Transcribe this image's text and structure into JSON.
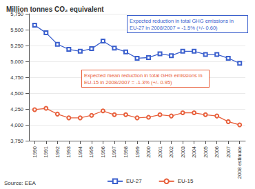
{
  "chart_data": {
    "type": "line",
    "title": "Million tonnes CO₂ equivalent",
    "categories": [
      "1990",
      "1991",
      "1992",
      "1993",
      "1994",
      "1995",
      "1996",
      "1997",
      "1998",
      "1999",
      "2000",
      "2001",
      "2002",
      "2003",
      "2004",
      "2005",
      "2006",
      "2007",
      "2008 estimate"
    ],
    "series": [
      {
        "name": "EU-27",
        "color": "#3a5fcd",
        "marker": "square",
        "values": [
          5570,
          5450,
          5270,
          5190,
          5160,
          5200,
          5320,
          5210,
          5150,
          5050,
          5060,
          5120,
          5090,
          5160,
          5160,
          5110,
          5110,
          5050,
          4970
        ]
      },
      {
        "name": "EU-15",
        "color": "#e8603c",
        "marker": "circle",
        "values": [
          4240,
          4260,
          4170,
          4110,
          4110,
          4150,
          4220,
          4160,
          4160,
          4110,
          4120,
          4160,
          4140,
          4190,
          4190,
          4160,
          4140,
          4050,
          4000
        ]
      }
    ],
    "ylim": [
      3750,
      5750
    ],
    "yticks": [
      {
        "value": 3750,
        "label": "3,750"
      },
      {
        "value": 4000,
        "label": "4,000"
      },
      {
        "value": 4250,
        "label": "4,250"
      },
      {
        "value": 4500,
        "label": "4,500"
      },
      {
        "value": 4750,
        "label": "4,750"
      },
      {
        "value": 5000,
        "label": "5,000"
      },
      {
        "value": 5250,
        "label": "5,250"
      },
      {
        "value": 5500,
        "label": "5,500"
      },
      {
        "value": 5750,
        "label": "5,750"
      }
    ],
    "grid": true,
    "legend": "bottom",
    "annotations": [
      {
        "text": "Expected reduction in total GHG emissions in EU-27 in 2008/2007 = -1.5% (+/- 0.60)",
        "color": "#3a5fcd"
      },
      {
        "text": "Expected mean reduction in total GHG emissions in EU-15 in 2008/2007 = -1.3% (+/- 0.95)",
        "color": "#e8603c"
      }
    ],
    "source": "Source: EEA"
  }
}
